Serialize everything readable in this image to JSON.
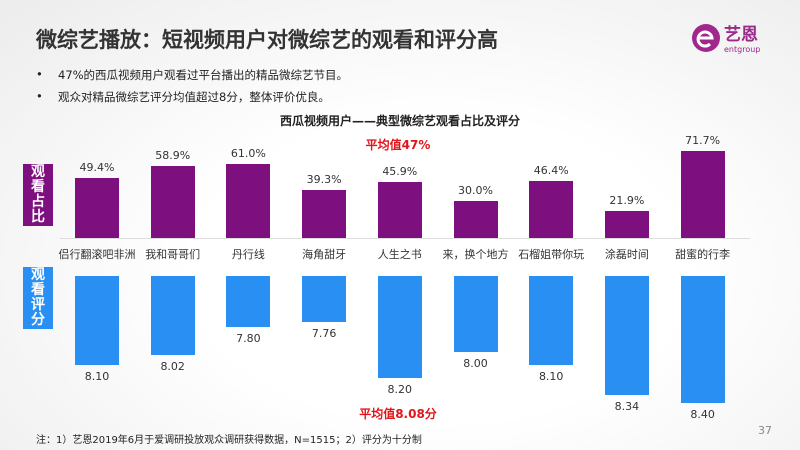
{
  "title": "微综艺播放：短视频用户对微综艺的观看和评分高",
  "logo": {
    "brand_cn": "艺恩",
    "brand_en": "entgroup",
    "color": "#a0288c"
  },
  "bullets": [
    "47%的西瓜视频用户观看过平台播出的精品微综艺节目。",
    "观众对精品微综艺评分均值超过8分，整体评价优良。"
  ],
  "side_labels": {
    "share": "观看占比",
    "rating": "观看评分"
  },
  "footnote": "注：1）艺恩2019年6月于爱调研投放观众调研获得数据，N=1515；2）评分为十分制",
  "page_number": "37",
  "chart_data": {
    "type": "bar",
    "title": "西瓜视频用户——典型微综艺观看占比及评分",
    "categories": [
      "侣行翻滚吧非洲",
      "我和哥哥们",
      "丹行线",
      "海角甜牙",
      "人生之书",
      "来，换个地方",
      "石榴姐带你玩",
      "涂磊时间",
      "甜蜜的行李"
    ],
    "series": [
      {
        "name": "观看占比",
        "unit": "%",
        "color": "#7d0f7e",
        "values": [
          49.4,
          58.9,
          61.0,
          39.3,
          45.9,
          30.0,
          46.4,
          21.9,
          71.7
        ],
        "labels": [
          "49.4%",
          "58.9%",
          "61.0%",
          "39.3%",
          "45.9%",
          "30.0%",
          "46.4%",
          "21.9%",
          "71.7%"
        ],
        "average_label": "平均值47%"
      },
      {
        "name": "观看评分",
        "unit": "分",
        "color": "#2a8ff2",
        "values": [
          8.1,
          8.02,
          7.8,
          7.76,
          8.2,
          8.0,
          8.1,
          8.34,
          8.4
        ],
        "labels": [
          "8.10",
          "8.02",
          "7.80",
          "7.76",
          "8.20",
          "8.00",
          "8.10",
          "8.34",
          "8.40"
        ],
        "average_label": "平均值8.08分"
      }
    ]
  }
}
